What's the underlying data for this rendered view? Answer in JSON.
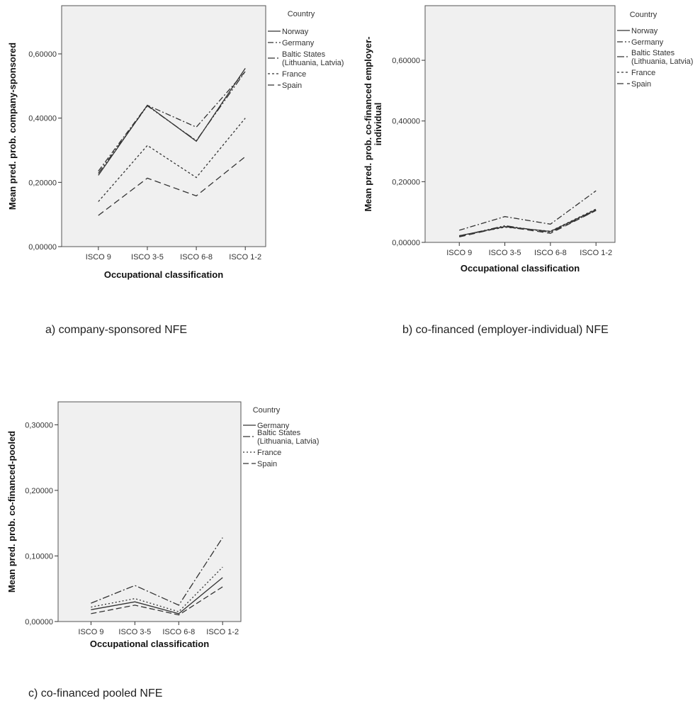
{
  "chart_data": [
    {
      "type": "line",
      "caption": "a) company-sponsored NFE",
      "xlabel": "Occupational classification",
      "ylabel": "Mean pred. prob. company-sponsored",
      "categories": [
        "ISCO 9",
        "ISCO 3-5",
        "ISCO 6-8",
        "ISCO 1-2"
      ],
      "ylim": [
        0,
        0.75
      ],
      "yticks": [
        0,
        0.2,
        0.4,
        0.6
      ],
      "ytick_labels": [
        "0,00000",
        "0,20000",
        "0,40000",
        "0,60000"
      ],
      "legend": {
        "title": "Country",
        "position": "right"
      },
      "series": [
        {
          "name": "Norway",
          "dash": "",
          "values": [
            0.222,
            0.44,
            0.328,
            0.555
          ]
        },
        {
          "name": "Germany",
          "dash": "8 3 2 3",
          "values": [
            0.235,
            0.44,
            0.372,
            0.545
          ]
        },
        {
          "name": "Baltic States\n(Lithuania, Latvia)",
          "dash": "10 3 2 3 2 3",
          "values": [
            0.228,
            0.438,
            0.33,
            0.545
          ]
        },
        {
          "name": "France",
          "dash": "3 3",
          "values": [
            0.14,
            0.315,
            0.215,
            0.4
          ]
        },
        {
          "name": "Spain",
          "dash": "9 5",
          "values": [
            0.097,
            0.213,
            0.158,
            0.28
          ]
        }
      ]
    },
    {
      "type": "line",
      "caption": "b) co-financed (employer-individual) NFE",
      "xlabel": "Occupational classification",
      "ylabel": "Mean pred. prob. co-financed employer-individual",
      "ylabel_lines": [
        "Mean pred. prob. co-financed employer-",
        "individual"
      ],
      "categories": [
        "ISCO 9",
        "ISCO 3-5",
        "ISCO 6-8",
        "ISCO 1-2"
      ],
      "ylim": [
        0,
        0.78
      ],
      "yticks": [
        0,
        0.2,
        0.4,
        0.6
      ],
      "ytick_labels": [
        "0,00000",
        "0,20000",
        "0,40000",
        "0,60000"
      ],
      "legend": {
        "title": "Country",
        "position": "right"
      },
      "series": [
        {
          "name": "Norway",
          "dash": "",
          "values": [
            0.022,
            0.052,
            0.036,
            0.108
          ]
        },
        {
          "name": "Germany",
          "dash": "8 3 2 3",
          "values": [
            0.04,
            0.085,
            0.06,
            0.17
          ]
        },
        {
          "name": "Baltic States\n(Lithuania, Latvia)",
          "dash": "10 3 2 3 2 3",
          "values": [
            0.02,
            0.055,
            0.033,
            0.105
          ]
        },
        {
          "name": "France",
          "dash": "3 3",
          "values": [
            0.022,
            0.05,
            0.037,
            0.11
          ]
        },
        {
          "name": "Spain",
          "dash": "9 5",
          "values": [
            0.018,
            0.052,
            0.03,
            0.105
          ]
        }
      ]
    },
    {
      "type": "line",
      "caption": "c) co-financed pooled NFE",
      "xlabel": "Occupational classification",
      "ylabel": "Mean pred. prob. co-financed-pooled",
      "categories": [
        "ISCO 9",
        "ISCO 3-5",
        "ISCO 6-8",
        "ISCO 1-2"
      ],
      "ylim": [
        0,
        0.335
      ],
      "yticks": [
        0,
        0.1,
        0.2,
        0.3
      ],
      "ytick_labels": [
        "0,00000",
        "0,10000",
        "0,20000",
        "0,30000"
      ],
      "legend": {
        "title": "Country",
        "position": "right"
      },
      "series": [
        {
          "name": "Germany",
          "dash": "",
          "values": [
            0.018,
            0.03,
            0.012,
            0.067
          ]
        },
        {
          "name": "Baltic States\n(Lithuania, Latvia)",
          "dash": "10 3 2 3",
          "values": [
            0.028,
            0.055,
            0.025,
            0.128
          ]
        },
        {
          "name": "France",
          "dash": "2 3",
          "values": [
            0.022,
            0.035,
            0.015,
            0.083
          ]
        },
        {
          "name": "Spain",
          "dash": "8 4",
          "values": [
            0.012,
            0.025,
            0.01,
            0.053
          ]
        }
      ]
    }
  ]
}
